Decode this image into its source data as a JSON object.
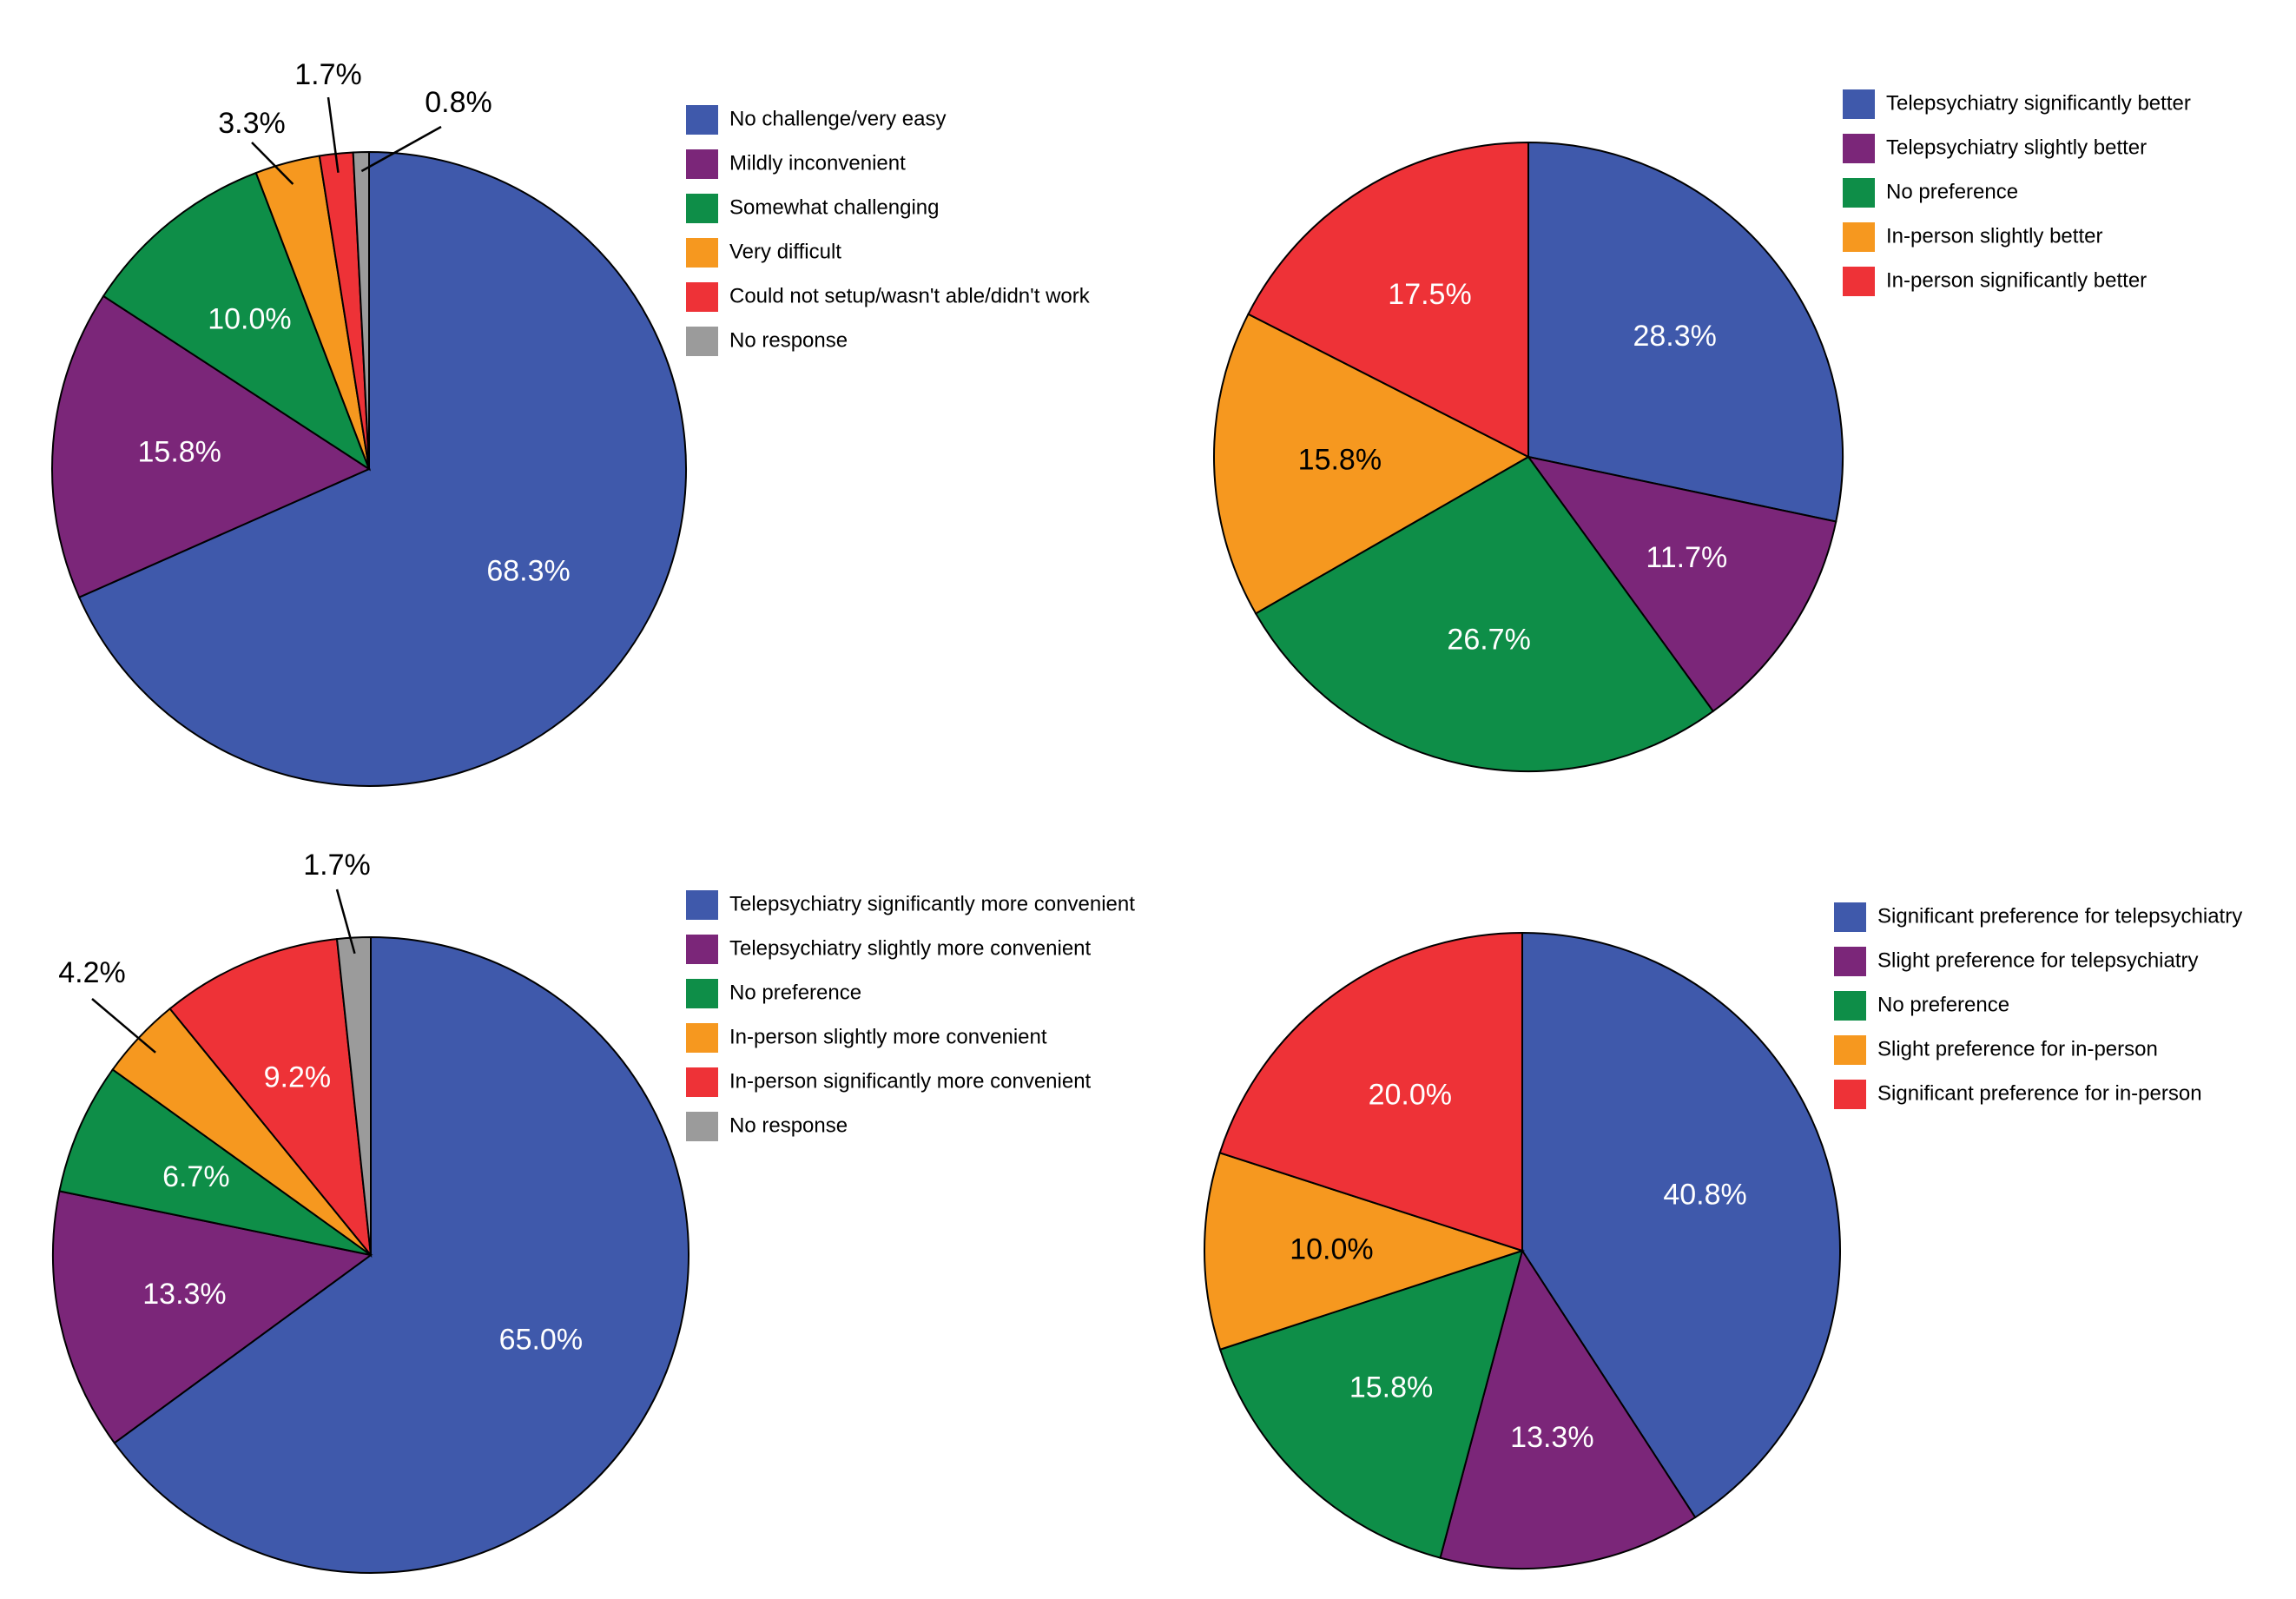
{
  "colors": {
    "blue": "#3f59ab",
    "purple": "#7b2679",
    "green": "#0e8e48",
    "orange": "#f6981f",
    "red": "#ee3237",
    "gray": "#9b9b9b"
  },
  "chart_data": [
    {
      "type": "pie",
      "title": "",
      "slices": [
        {
          "label": "No challenge/very easy",
          "value": 68.3,
          "value_label": "68.3%",
          "color": "#3f59ab"
        },
        {
          "label": "Mildly inconvenient",
          "value": 15.8,
          "value_label": "15.8%",
          "color": "#7b2679"
        },
        {
          "label": "Somewhat challenging",
          "value": 10.0,
          "value_label": "10.0%",
          "color": "#0e8e48"
        },
        {
          "label": "Very difficult",
          "value": 3.3,
          "value_label": "3.3%",
          "color": "#f6981f"
        },
        {
          "label": "Could not setup/wasn't able/didn't work",
          "value": 1.7,
          "value_label": "1.7%",
          "color": "#ee3237"
        },
        {
          "label": "No response",
          "value": 0.8,
          "value_label": "0.8%",
          "color": "#9b9b9b"
        }
      ],
      "legend_position": "right"
    },
    {
      "type": "pie",
      "title": "",
      "slices": [
        {
          "label": "Telepsychiatry significantly better",
          "value": 28.3,
          "value_label": "28.3%",
          "color": "#3f59ab"
        },
        {
          "label": "Telepsychiatry slightly better",
          "value": 11.7,
          "value_label": "11.7%",
          "color": "#7b2679"
        },
        {
          "label": "No preference",
          "value": 26.7,
          "value_label": "26.7%",
          "color": "#0e8e48"
        },
        {
          "label": "In-person slightly better",
          "value": 15.8,
          "value_label": "15.8%",
          "color": "#f6981f"
        },
        {
          "label": "In-person significantly better",
          "value": 17.5,
          "value_label": "17.5%",
          "color": "#ee3237"
        }
      ],
      "legend_position": "right"
    },
    {
      "type": "pie",
      "title": "",
      "slices": [
        {
          "label": "Telepsychiatry significantly more convenient",
          "value": 65.0,
          "value_label": "65.0%",
          "color": "#3f59ab"
        },
        {
          "label": "Telepsychiatry slightly more convenient",
          "value": 13.3,
          "value_label": "13.3%",
          "color": "#7b2679"
        },
        {
          "label": "No preference",
          "value": 6.7,
          "value_label": "6.7%",
          "color": "#0e8e48"
        },
        {
          "label": "In-person slightly more convenient",
          "value": 4.2,
          "value_label": "4.2%",
          "color": "#f6981f"
        },
        {
          "label": "In-person significantly more convenient",
          "value": 9.2,
          "value_label": "9.2%",
          "color": "#ee3237"
        },
        {
          "label": "No response",
          "value": 1.7,
          "value_label": "1.7%",
          "color": "#9b9b9b"
        }
      ],
      "legend_position": "right"
    },
    {
      "type": "pie",
      "title": "",
      "slices": [
        {
          "label": "Significant preference for telepsychiatry",
          "value": 40.8,
          "value_label": "40.8%",
          "color": "#3f59ab"
        },
        {
          "label": "Slight preference for telepsychiatry",
          "value": 13.3,
          "value_label": "13.3%",
          "color": "#7b2679"
        },
        {
          "label": "No preference",
          "value": 15.8,
          "value_label": "15.8%",
          "color": "#0e8e48"
        },
        {
          "label": "Slight preference for in-person",
          "value": 10.0,
          "value_label": "10.0%",
          "color": "#f6981f"
        },
        {
          "label": "Significant preference for in-person",
          "value": 20.0,
          "value_label": "20.0%",
          "color": "#ee3237"
        }
      ],
      "legend_position": "right"
    }
  ]
}
